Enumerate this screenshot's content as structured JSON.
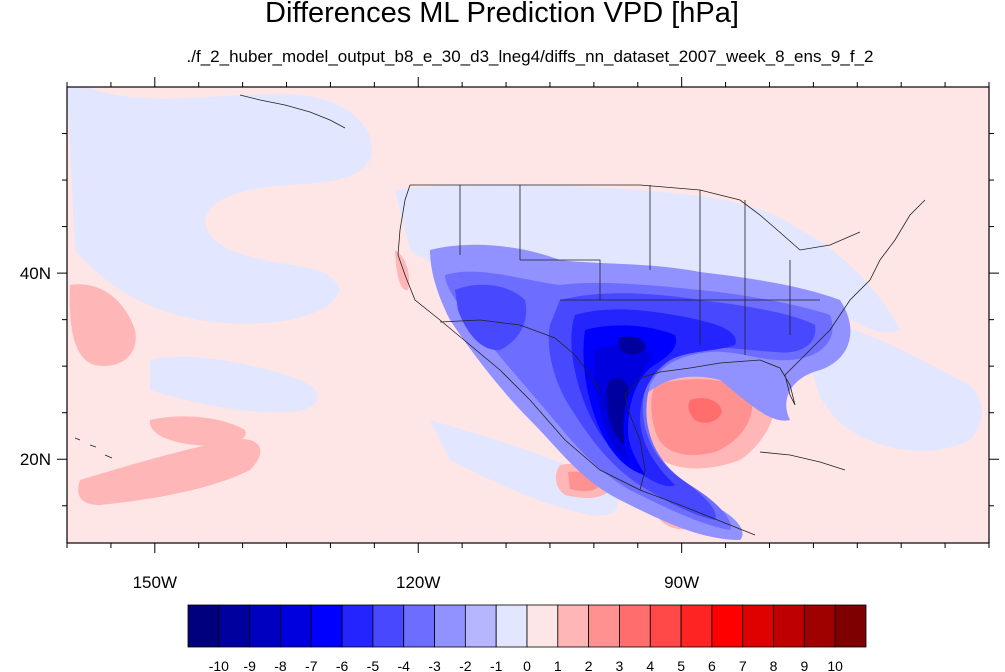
{
  "chart_data": {
    "type": "heatmap",
    "title": "Differences ML Prediction VPD [hPa]",
    "subtitle": "./f_2_huber_model_output_b8_e_30_d3_lneg4/diffs_nn_dataset_2007_week_8_ens_9_f_2",
    "map_extent": {
      "lon": [
        -160,
        -55
      ],
      "lat": [
        11,
        60
      ]
    },
    "x_ticks": [
      {
        "lon": -150,
        "label": "150W"
      },
      {
        "lon": -120,
        "label": "120W"
      },
      {
        "lon": -90,
        "label": "90W"
      }
    ],
    "y_ticks": [
      {
        "lat": 40,
        "label": "40N"
      },
      {
        "lat": 20,
        "label": "20N"
      }
    ],
    "colorbar": {
      "labels": [
        "-10",
        "-9",
        "-8",
        "-7",
        "-6",
        "-5",
        "-4",
        "-3",
        "-2",
        "-1",
        "0",
        "1",
        "2",
        "3",
        "4",
        "5",
        "6",
        "7",
        "8",
        "9",
        "10"
      ],
      "colors": [
        "#00007f",
        "#00009f",
        "#0000bf",
        "#0000df",
        "#0000ff",
        "#2424ff",
        "#4848ff",
        "#6d6dff",
        "#9191ff",
        "#b6b6ff",
        "#e2e6ff",
        "#ffe6e6",
        "#ffb6b6",
        "#ff9191",
        "#ff6d6d",
        "#ff4848",
        "#ff2424",
        "#ff0000",
        "#df0000",
        "#bf0000",
        "#9f0000",
        "#7f0000"
      ]
    },
    "background_color": "#ffe6e6",
    "features": [
      {
        "name": "Mexico / Texas strong negative",
        "level": -8
      },
      {
        "name": "Southeast US negative",
        "level": -5
      },
      {
        "name": "Gulf of Mexico positive",
        "level": 3
      },
      {
        "name": "Eastern Pacific positive",
        "level": 2
      },
      {
        "name": "North Pacific weak negative",
        "level": -1
      }
    ]
  }
}
